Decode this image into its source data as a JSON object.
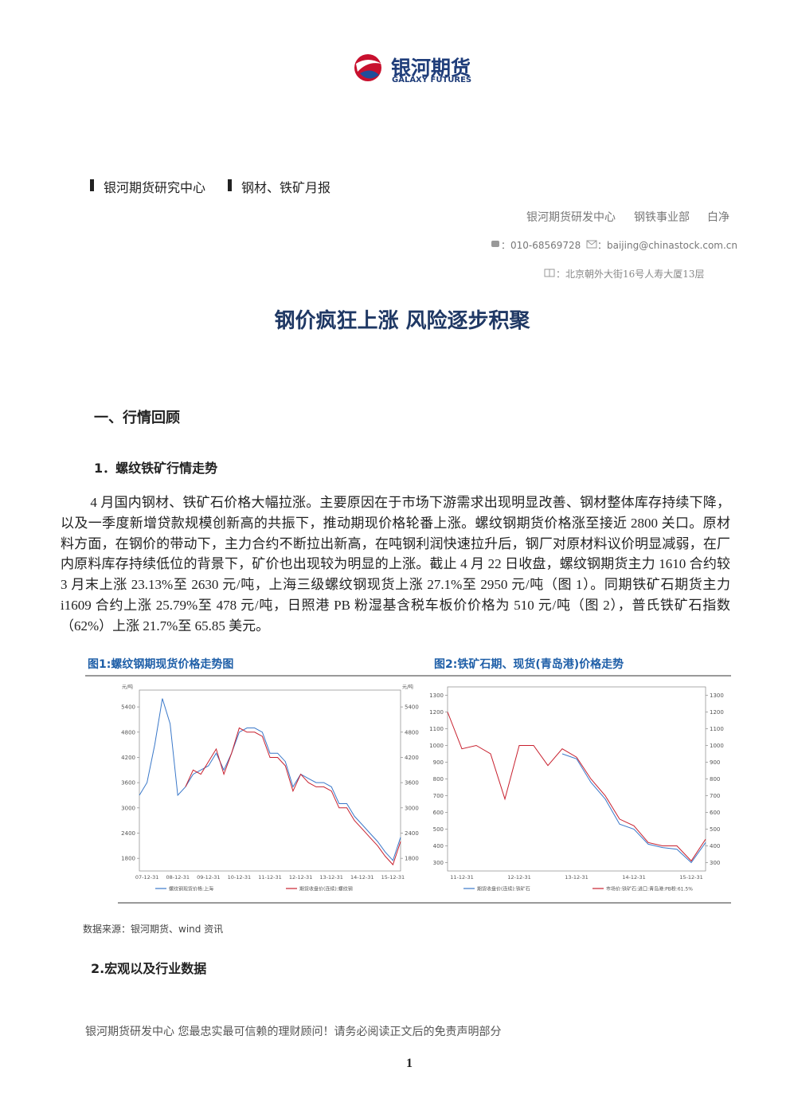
{
  "header": {
    "logo_name": "银河期货",
    "logo_english": "GALAXY FUTURES",
    "breadcrumb": [
      "银河期货研究中心",
      "钢材、铁矿月报"
    ],
    "author": [
      "银河期货研发中心",
      "钢铁事业部",
      "白净"
    ],
    "phone": "：010-68569728",
    "email": "：baijing@chinastock.com.cn",
    "address": "：北京朝外大街16号人寿大厦13层"
  },
  "title": "钢价疯狂上涨 风险逐步积聚",
  "sections": [
    {
      "heading": "一、行情回顾",
      "subsections": [
        {
          "heading": "1．螺纹铁矿行情走势",
          "paragraph": "4 月国内钢材、铁矿石价格大幅拉涨。主要原因在于市场下游需求出现明显改善、钢材整体库存持续下降，以及一季度新增贷款规模创新高的共振下，推动期现价格轮番上涨。螺纹钢期货价格涨至接近 2800 关口。原材料方面，在钢价的带动下，主力合约不断拉出新高，在吨钢利润快速拉升后，钢厂对原材料议价明显减弱，在厂内原料库存持续低位的背景下，矿价也出现较为明显的上涨。截止 4 月 22 日收盘，螺纹钢期货主力 1610 合约较 3 月末上涨 23.13%至 2630 元/吨，上海三级螺纹钢现货上涨 27.1%至 2950 元/吨（图 1）。同期铁矿石期货主力 i1609 合约上涨 25.79%至 478 元/吨，日照港 PB 粉湿基含税车板价价格为 510 元/吨（图 2），普氏铁矿石指数（62%）上涨 21.7%至 65.85 美元。",
          "source": "数据来源：银河期货、wind 资讯"
        },
        {
          "heading": "2.宏观以及行业数据"
        }
      ]
    }
  ],
  "footer": "银河期货研发中心  您最忠实最可信赖的理财顾问！请务必阅读正文后的免责声明部分",
  "page_number": "1",
  "chart_data": [
    {
      "type": "line",
      "title": "图1:螺纹钢期现货价格走势图",
      "ylabel": "元/吨",
      "y2label": "元/吨",
      "categories": [
        null,
        "07-12-31",
        null,
        null,
        null,
        "08-12-31",
        null,
        null,
        null,
        "09-12-31",
        null,
        null,
        null,
        "10-12-31",
        null,
        null,
        null,
        "11-12-31",
        null,
        null,
        null,
        "12-12-31",
        null,
        null,
        null,
        "13-12-31",
        null,
        null,
        null,
        "14-12-31",
        null,
        null,
        null,
        "15-12-31",
        null
      ],
      "series": [
        {
          "name": "螺纹钢现货价格:上海",
          "color": "#3a78c9",
          "values": [
            3300,
            3600,
            4500,
            5600,
            5000,
            3300,
            3500,
            3800,
            3900,
            4000,
            4300,
            3900,
            4300,
            4800,
            4900,
            4900,
            4800,
            4300,
            4300,
            4100,
            3500,
            3800,
            3700,
            3600,
            3600,
            3500,
            3100,
            3100,
            2800,
            2600,
            2400,
            2200,
            1950,
            1750,
            2300
          ]
        },
        {
          "name": "期货收盘价(连续):螺纹钢",
          "color": "#c8202e",
          "values": [
            null,
            null,
            null,
            null,
            null,
            null,
            3500,
            3900,
            3800,
            4100,
            4400,
            3800,
            4300,
            4900,
            4800,
            4800,
            4700,
            4200,
            4200,
            4000,
            3400,
            3800,
            3600,
            3500,
            3500,
            3400,
            3000,
            3000,
            2700,
            2500,
            2300,
            2100,
            1850,
            1650,
            2200
          ]
        }
      ],
      "ylim": [
        1500,
        5800
      ],
      "yticks": [
        1800,
        2400,
        3000,
        3600,
        4200,
        4800,
        5400
      ],
      "y2lim": [
        1500,
        5800
      ],
      "y2ticks": [
        1800,
        2400,
        3000,
        3600,
        4200,
        4800,
        5400
      ]
    },
    {
      "type": "line",
      "title": "图2:铁矿石期、现货(青岛港)价格走势",
      "categories": [
        null,
        "11-12-31",
        null,
        null,
        null,
        "12-12-31",
        null,
        null,
        null,
        "13-12-31",
        null,
        null,
        null,
        "14-12-31",
        null,
        null,
        null,
        "15-12-31",
        null
      ],
      "series": [
        {
          "name": "期货收盘价(连续):铁矿石",
          "color": "#3a78c9",
          "values": [
            null,
            null,
            null,
            null,
            null,
            null,
            null,
            null,
            950,
            920,
            780,
            680,
            530,
            500,
            410,
            390,
            380,
            300,
            420
          ]
        },
        {
          "name": "市场价:铁矿石:进口:青岛港:PB粉:61.5%",
          "color": "#c8202e",
          "axis": "y2",
          "values": [
            1200,
            980,
            1000,
            950,
            680,
            1000,
            1000,
            880,
            980,
            930,
            800,
            700,
            560,
            520,
            420,
            400,
            400,
            310,
            440
          ]
        }
      ],
      "ylim": [
        250,
        1350
      ],
      "yticks": [
        300,
        400,
        500,
        600,
        700,
        800,
        900,
        1000,
        1100,
        1200,
        1300
      ],
      "y2lim": [
        250,
        1350
      ],
      "y2ticks": [
        300,
        400,
        500,
        600,
        700,
        800,
        900,
        1000,
        1100,
        1200,
        1300
      ]
    }
  ]
}
